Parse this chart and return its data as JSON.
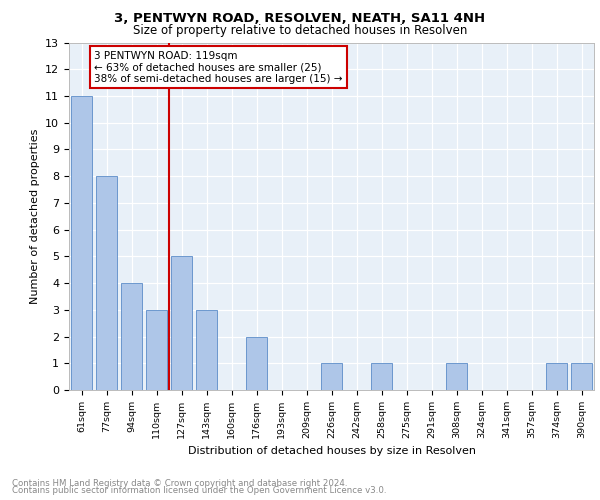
{
  "title": "3, PENTWYN ROAD, RESOLVEN, NEATH, SA11 4NH",
  "subtitle": "Size of property relative to detached houses in Resolven",
  "xlabel": "Distribution of detached houses by size in Resolven",
  "ylabel": "Number of detached properties",
  "categories": [
    "61sqm",
    "77sqm",
    "94sqm",
    "110sqm",
    "127sqm",
    "143sqm",
    "160sqm",
    "176sqm",
    "193sqm",
    "209sqm",
    "226sqm",
    "242sqm",
    "258sqm",
    "275sqm",
    "291sqm",
    "308sqm",
    "324sqm",
    "341sqm",
    "357sqm",
    "374sqm",
    "390sqm"
  ],
  "values": [
    11,
    8,
    4,
    3,
    5,
    3,
    0,
    2,
    0,
    0,
    1,
    0,
    1,
    0,
    0,
    1,
    0,
    0,
    0,
    1,
    1
  ],
  "bar_color": "#aec6e8",
  "bar_edge_color": "#5b8cc8",
  "vline_x": 3.5,
  "vline_color": "#cc0000",
  "annotation_text": "3 PENTWYN ROAD: 119sqm\n← 63% of detached houses are smaller (25)\n38% of semi-detached houses are larger (15) →",
  "annotation_box_color": "#cc0000",
  "ylim": [
    0,
    13
  ],
  "yticks": [
    0,
    1,
    2,
    3,
    4,
    5,
    6,
    7,
    8,
    9,
    10,
    11,
    12,
    13
  ],
  "footer_line1": "Contains HM Land Registry data © Crown copyright and database right 2024.",
  "footer_line2": "Contains public sector information licensed under the Open Government Licence v3.0.",
  "bg_color": "#e8f0f8",
  "title_fontsize": 9.5,
  "subtitle_fontsize": 8.5
}
